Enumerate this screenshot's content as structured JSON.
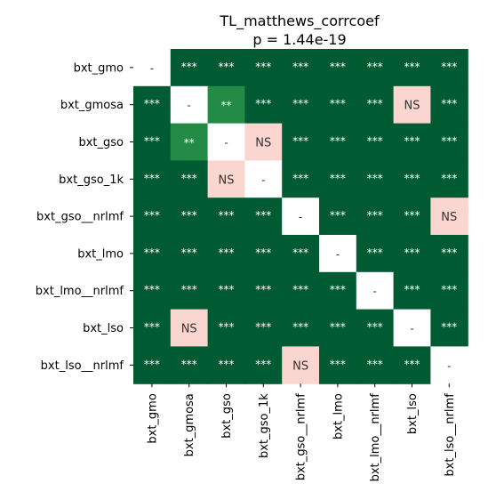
{
  "chart_data": {
    "type": "heatmap",
    "title": "TL_matthews_corrcoef",
    "subtitle": "p = 1.44e-19",
    "row_labels": [
      "bxt_gmo",
      "bxt_gmosa",
      "bxt_gso",
      "bxt_gso_1k",
      "bxt_gso__nrlmf",
      "bxt_lmo",
      "bxt_lmo__nrlmf",
      "bxt_lso",
      "bxt_lso__nrlmf"
    ],
    "col_labels": [
      "bxt_gmo",
      "bxt_gmosa",
      "bxt_gso",
      "bxt_gso_1k",
      "bxt_gso__nrlmf",
      "bxt_lmo",
      "bxt_lmo__nrlmf",
      "bxt_lso",
      "bxt_lso__nrlmf"
    ],
    "cells": [
      [
        "-",
        "***",
        "***",
        "***",
        "***",
        "***",
        "***",
        "***",
        "***"
      ],
      [
        "***",
        "-",
        "**",
        "***",
        "***",
        "***",
        "***",
        "NS",
        "***"
      ],
      [
        "***",
        "**",
        "-",
        "NS",
        "***",
        "***",
        "***",
        "***",
        "***"
      ],
      [
        "***",
        "***",
        "NS",
        "-",
        "***",
        "***",
        "***",
        "***",
        "***"
      ],
      [
        "***",
        "***",
        "***",
        "***",
        "-",
        "***",
        "***",
        "***",
        "NS"
      ],
      [
        "***",
        "***",
        "***",
        "***",
        "***",
        "-",
        "***",
        "***",
        "***"
      ],
      [
        "***",
        "***",
        "***",
        "***",
        "***",
        "***",
        "-",
        "***",
        "***"
      ],
      [
        "***",
        "NS",
        "***",
        "***",
        "***",
        "***",
        "***",
        "-",
        "***"
      ],
      [
        "***",
        "***",
        "***",
        "***",
        "NS",
        "***",
        "***",
        "***",
        "-"
      ]
    ],
    "colors": {
      "***": "#005a32",
      "**": "#238b45",
      "NS": "#fbd5d0",
      "-": "#ffffff"
    },
    "text_colors": {
      "***": "#ffffff",
      "**": "#ffffff",
      "NS": "#333333",
      "-": "#333333"
    },
    "colorbar": false,
    "grid": false
  }
}
